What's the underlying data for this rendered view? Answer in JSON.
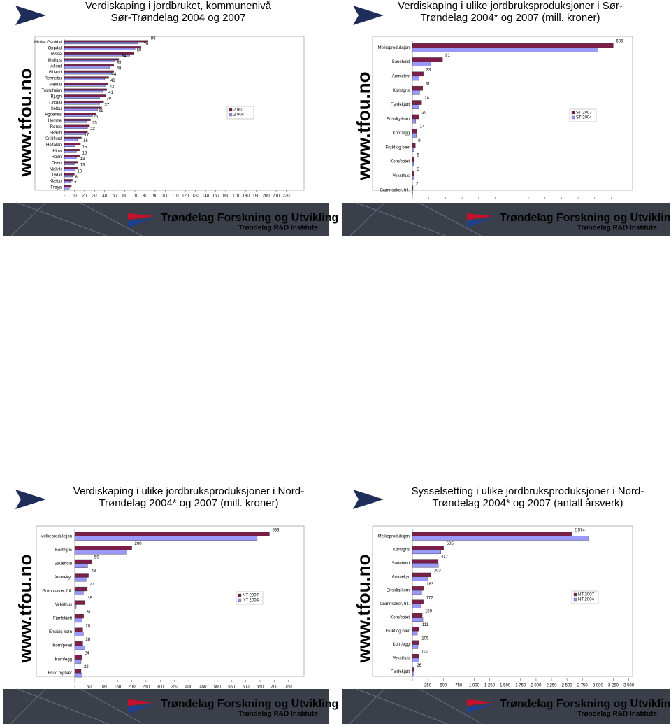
{
  "watermark": "www.tfou.no",
  "footer": {
    "name": "Trøndelag Forskning og Utvikling",
    "subtitle": "Trøndelag R&D Institute"
  },
  "chart_data": [
    {
      "type": "bar",
      "orientation": "horizontal",
      "title": [
        "Verdiskaping i jordbruket, kommunenivå",
        "Sør-Trøndelag 2004 og 2007"
      ],
      "categories": [
        "Midtre Gauldal",
        "Oppdal",
        "Rissa",
        "Melhus",
        "Afjord",
        "Ørland",
        "Rennebu",
        "Meldal",
        "Trondheim",
        "Bjugn",
        "Orkdal",
        "Selbu",
        "Agdenes",
        "Hemne",
        "Røros",
        "Skaun",
        "Snillfjord",
        "Holtålen",
        "Hitra",
        "Roan",
        "Osen",
        "Malvik",
        "Tydal",
        "Klæbu",
        "Frøya"
      ],
      "series": [
        {
          "name": "2 007",
          "color": "#7b1f4a",
          "values": [
            83,
            76,
            69,
            54,
            49,
            49,
            44,
            43,
            42,
            41,
            39,
            37,
            31,
            26,
            25,
            23,
            17,
            16,
            15,
            15,
            13,
            13,
            10,
            8,
            7
          ]
        },
        {
          "name": "2 004",
          "color": "#9999ff",
          "values": [
            73,
            70,
            65,
            50,
            45,
            47,
            40,
            41,
            38,
            35,
            35,
            33,
            28,
            22,
            23,
            20,
            13,
            11,
            12,
            12,
            10,
            10,
            8,
            6,
            5
          ]
        }
      ],
      "labeled_series": 0,
      "xlim": [
        0,
        230
      ],
      "xticks": [
        {
          "value": 0,
          "label": "-"
        },
        10,
        20,
        30,
        40,
        50,
        60,
        70,
        80,
        90,
        100,
        110,
        120,
        130,
        140,
        150,
        160,
        170,
        180,
        190,
        200,
        210,
        220
      ],
      "legend": "right"
    },
    {
      "type": "bar",
      "orientation": "horizontal",
      "title": [
        "Verdiskaping i ulike jordbruksproduksjoner i Sør-",
        "Trøndelag 2004* og 2007 (mill. kroner)"
      ],
      "categories": [
        "Melkeproduksjon",
        "Sauehold",
        "Ammekyr",
        "Korn/gris",
        "Fjørfekjøtt",
        "Ensidig korn",
        "Korn/egg",
        "Frukt og bær",
        "Korn/potet",
        "Veksthus",
        "Grønnsaker, fril."
      ],
      "series": [
        {
          "name": "ST 2007",
          "color": "#7b1f4a",
          "values": [
            606,
            91,
            33,
            31,
            28,
            20,
            14,
            9,
            5,
            5,
            2
          ]
        },
        {
          "name": "ST 2004",
          "color": "#9999ff",
          "values": [
            560,
            55,
            20,
            22,
            20,
            10,
            12,
            6,
            4,
            3,
            1
          ]
        }
      ],
      "labeled_series": 0,
      "xlim": [
        0,
        660
      ],
      "xticks": [
        {
          "value": 0,
          "label": "-"
        },
        50,
        100,
        150,
        200,
        250,
        300,
        350,
        400,
        450,
        500,
        550,
        600,
        650
      ],
      "legend": "right"
    },
    {
      "type": "bar",
      "orientation": "horizontal",
      "title": [
        "Verdiskaping i ulike jordbruksproduksjoner i Nord-",
        "Trøndelag 2004* og 2007 (mill. kroner)"
      ],
      "categories": [
        "Melkeproduksjon",
        "Korn/gris",
        "Sauehold",
        "Ammekyr",
        "Grønnsaker, fril.",
        "Veksthus",
        "Fjørfekjøtt",
        "Ensidig korn",
        "Korn/potet",
        "Korn/egg",
        "Frukt og bær"
      ],
      "series": [
        {
          "name": "NT 2007",
          "color": "#7b1f4a",
          "values": [
            683,
            200,
            59,
            48,
            44,
            35,
            31,
            28,
            28,
            24,
            22
          ]
        },
        {
          "name": "NT 2004",
          "color": "#9999ff",
          "values": [
            640,
            180,
            45,
            40,
            30,
            5,
            25,
            30,
            35,
            22,
            25
          ]
        }
      ],
      "labeled_series": 0,
      "xlim": [
        0,
        780
      ],
      "xticks": [
        {
          "value": 0,
          "label": "-"
        },
        50,
        100,
        150,
        200,
        250,
        300,
        350,
        400,
        450,
        500,
        550,
        600,
        650,
        700,
        750
      ],
      "legend": "right"
    },
    {
      "type": "bar",
      "orientation": "horizontal",
      "title": [
        "Sysselsetting i ulike jordbruksproduksjoner i Nord-",
        "Trøndelag 2004* og 2007 (antall årsverk)"
      ],
      "categories": [
        "Melkeproduksjon",
        "Korn/gris",
        "Sauehold",
        "Ammekyr",
        "Ensidig korn",
        "Grønnsaker, fril.",
        "Korn/potet",
        "Frukt og bær",
        "Korn/egg",
        "Veksthus",
        "Fjørfekjøtt"
      ],
      "series": [
        {
          "name": "NT 2007",
          "color": "#7b1f4a",
          "values": [
            2574,
            505,
            417,
            303,
            183,
            177,
            159,
            111,
            105,
            102,
            26
          ],
          "value_labels": [
            "2 574",
            "505",
            "417",
            "303",
            "183",
            "177",
            "159",
            "111",
            "105",
            "102",
            "26"
          ]
        },
        {
          "name": "NT 2004",
          "color": "#9999ff",
          "values": [
            2850,
            460,
            420,
            250,
            150,
            130,
            170,
            80,
            90,
            110,
            30
          ]
        }
      ],
      "labeled_series": 0,
      "xlim": [
        0,
        3550
      ],
      "xticks": [
        {
          "value": 0,
          "label": "-"
        },
        250,
        500,
        750,
        {
          "value": 1000,
          "label": "1 000"
        },
        {
          "value": 1250,
          "label": "1 250"
        },
        {
          "value": 1500,
          "label": "1 500"
        },
        {
          "value": 1750,
          "label": "1 750"
        },
        {
          "value": 2000,
          "label": "2 000"
        },
        {
          "value": 2250,
          "label": "2 250"
        },
        {
          "value": 2500,
          "label": "2 500"
        },
        {
          "value": 2750,
          "label": "2 750"
        },
        {
          "value": 3000,
          "label": "3 000"
        },
        {
          "value": 3250,
          "label": "3 250"
        },
        {
          "value": 3500,
          "label": "3 500"
        }
      ],
      "legend": "right"
    }
  ]
}
